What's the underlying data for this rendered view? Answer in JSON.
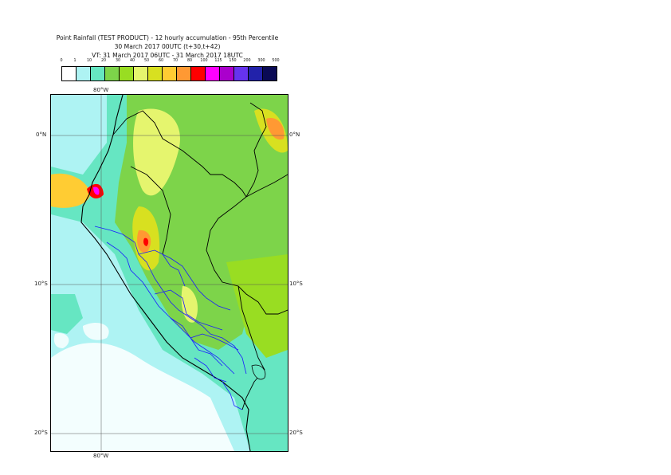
{
  "header": {
    "title_line1": "Point Rainfall (TEST PRODUCT) - 12 hourly accumulation - 95th Percentile",
    "title_line2": "30 March 2017 00UTC (t+30,t+42)",
    "title_line3": "VT: 31 March 2017 06UTC - 31 March 2017 18UTC"
  },
  "legend": {
    "thresholds": [
      "0",
      "1",
      "10",
      "20",
      "30",
      "40",
      "50",
      "60",
      "70",
      "80",
      "100",
      "125",
      "150",
      "200",
      "300",
      "500"
    ],
    "colors": [
      "#ffffff",
      "#aef3f3",
      "#66e6c2",
      "#7dd44a",
      "#99dd22",
      "#e5f56e",
      "#d8e020",
      "#ffcc33",
      "#ff9933",
      "#ff0000",
      "#ff00ff",
      "#aa00cc",
      "#6633ee",
      "#2222aa",
      "#0a0a55"
    ]
  },
  "map": {
    "lon_labels": {
      "top": "80°W",
      "bottom": "80°W"
    },
    "lat_labels": [
      "0°N",
      "10°S",
      "20°S"
    ]
  }
}
